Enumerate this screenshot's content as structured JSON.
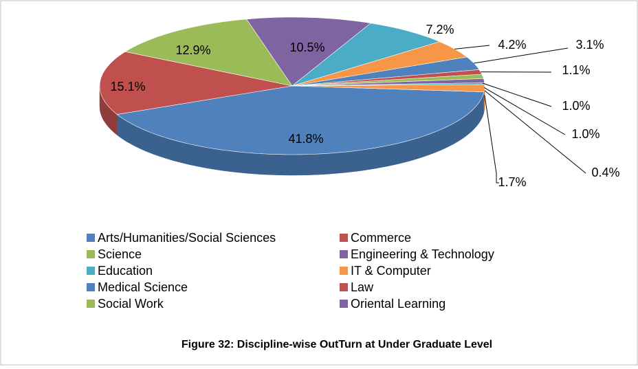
{
  "chart_data": {
    "type": "pie3d",
    "title": "Figure 32: Discipline-wise OutTurn at Under Graduate Level",
    "categories": [
      "Arts/Humanities/Social Sciences",
      "Commerce",
      "Science",
      "Engineering & Technology",
      "Education",
      "IT & Computer",
      "Medical Science",
      "Law",
      "Social Work",
      "Oriental Learning",
      null,
      null
    ],
    "values": [
      41.8,
      15.1,
      12.9,
      10.5,
      7.2,
      4.2,
      3.1,
      1.1,
      1.0,
      1.0,
      0.4,
      1.7
    ],
    "value_labels": [
      "41.8%",
      "15.1%",
      "12.9%",
      "10.5%",
      "7.2%",
      "4.2%",
      "3.1%",
      "1.1%",
      "1.0%",
      "1.0%",
      "0.4%",
      "1.7%"
    ],
    "colors": [
      "#4f81bd",
      "#c0504d",
      "#9bbb59",
      "#8064a2",
      "#4bacc6",
      "#f79646",
      "#4f81bd",
      "#c0504d",
      "#9bbb59",
      "#8064a2",
      "#4bacc6",
      "#f79646"
    ],
    "legend": "bottom"
  }
}
